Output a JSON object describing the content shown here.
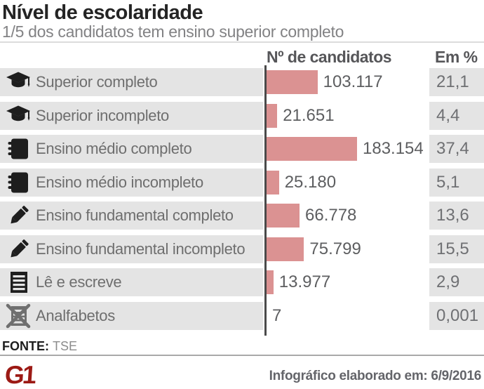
{
  "header": {
    "title": "Nível de escolaridade",
    "subtitle": "1/5 dos candidatos tem ensino superior completo"
  },
  "columns": {
    "candidates": "Nº de candidatos",
    "percent": "Em %"
  },
  "chart_data": {
    "type": "bar",
    "orientation": "horizontal",
    "title": "Nível de escolaridade",
    "subtitle": "1/5 dos candidatos tem ensino superior completo",
    "value_axis_label": "Nº de candidatos",
    "percent_axis_label": "Em %",
    "max_value": 183154,
    "rows": [
      {
        "label": "Superior completo",
        "icon": "graduation-cap-icon",
        "value": 103117,
        "value_label": "103.117",
        "pct": 21.1,
        "pct_label": "21,1"
      },
      {
        "label": "Superior incompleto",
        "icon": "graduation-cap-icon",
        "value": 21651,
        "value_label": "21.651",
        "pct": 4.4,
        "pct_label": "4,4"
      },
      {
        "label": "Ensino médio completo",
        "icon": "notebook-icon",
        "value": 183154,
        "value_label": "183.154",
        "pct": 37.4,
        "pct_label": "37,4"
      },
      {
        "label": "Ensino médio incompleto",
        "icon": "notebook-icon",
        "value": 25180,
        "value_label": "25.180",
        "pct": 5.1,
        "pct_label": "5,1"
      },
      {
        "label": "Ensino fundamental completo",
        "icon": "pencil-icon",
        "value": 66778,
        "value_label": "66.778",
        "pct": 13.6,
        "pct_label": "13,6"
      },
      {
        "label": "Ensino fundamental incompleto",
        "icon": "pencil-icon",
        "value": 75799,
        "value_label": "75.799",
        "pct": 15.5,
        "pct_label": "15,5"
      },
      {
        "label": "Lê e escreve",
        "icon": "read-write-icon",
        "value": 13977,
        "value_label": "13.977",
        "pct": 2.9,
        "pct_label": "2,9"
      },
      {
        "label": "Analfabetos",
        "icon": "illiterate-icon",
        "value": 7,
        "value_label": "7",
        "pct": 0.001,
        "pct_label": "0,001"
      }
    ]
  },
  "footer": {
    "source_label": "FONTE:",
    "source_value": "TSE",
    "logo": "G1",
    "credit": "Infográfico elaborado em: 6/9/2016"
  },
  "colors": {
    "bar": "#db9292",
    "row_bg": "#e4e4e4",
    "axis": "#4a4a4a",
    "logo_red": "#9c1a15"
  }
}
